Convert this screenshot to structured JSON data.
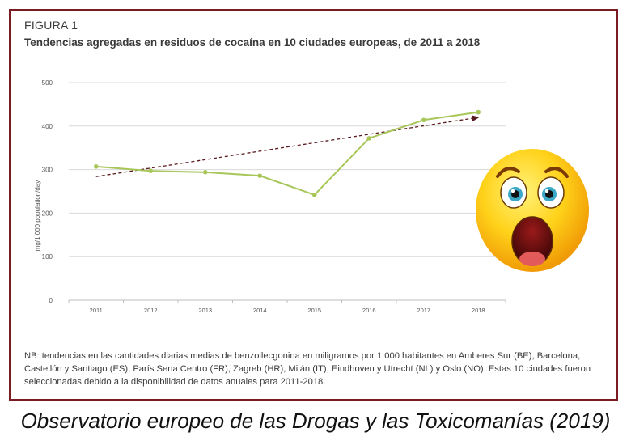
{
  "figure": {
    "label": "FIGURA 1",
    "title": "Tendencias agregadas en residuos de cocaína en 10 ciudades europeas, de 2011 a 2018",
    "note": "NB: tendencias en las cantidades diarias medias de benzoilecgonina en miligramos por 1 000 habitantes en Amberes Sur (BE), Barcelona, Castellón y Santiago (ES), París Sena Centro (FR), Zagreb (HR), Milán (IT), Eindhoven y Utrecht (NL) y Oslo (NO). Estas 10 ciudades fueron seleccionadas debido a la disponibilidad de datos anuales para 2011-2018."
  },
  "caption": "Observatorio europeo de las Drogas y las Toxicomanías (2019)",
  "emoji_icon": "shocked-face-icon",
  "colors": {
    "border": "#7a1d22",
    "line": "#a8c65a",
    "trend": "#5a1a1f",
    "grid": "#d9d9d9"
  },
  "chart_data": {
    "type": "line",
    "title": "",
    "xlabel": "",
    "ylabel": "mg/1 000 population/day",
    "categories": [
      "2011",
      "2012",
      "2013",
      "2014",
      "2015",
      "2016",
      "2017",
      "2018"
    ],
    "series": [
      {
        "values": [
          307,
          297,
          294,
          286,
          242,
          372,
          414,
          432
        ]
      }
    ],
    "trend_line": {
      "style": "dashed-arrow",
      "start": [
        2011,
        284
      ],
      "end": [
        2018,
        420
      ]
    },
    "ylim": [
      0,
      500
    ],
    "yticks": [
      "0",
      "100",
      "200",
      "300",
      "400",
      "500"
    ],
    "grid": true,
    "legend": "none"
  }
}
